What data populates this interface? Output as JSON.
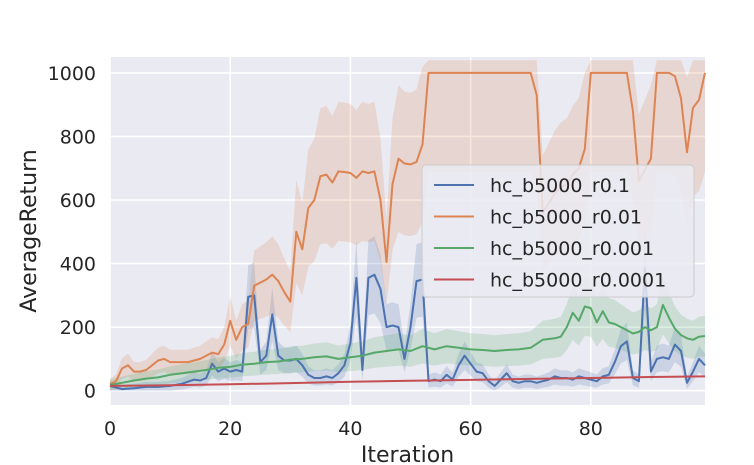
{
  "chart_data": {
    "type": "line",
    "title": "",
    "xlabel": "Iteration",
    "ylabel": "AverageReturn",
    "xlim": [
      0,
      99
    ],
    "ylim": [
      -45,
      1050
    ],
    "x_ticks": [
      0,
      20,
      40,
      60,
      80
    ],
    "y_ticks": [
      0,
      200,
      400,
      600,
      800,
      1000
    ],
    "grid": true,
    "legend_position": "center-right",
    "colors": {
      "background": "#eaeaf2",
      "grid": "#ffffff",
      "text": "#262626"
    },
    "series": [
      {
        "name": "hc_b5000_r0.1",
        "color": "#4c72b0",
        "band": true,
        "points": [
          [
            0,
            15
          ],
          [
            2,
            5
          ],
          [
            4,
            8
          ],
          [
            6,
            12
          ],
          [
            8,
            12
          ],
          [
            10,
            15
          ],
          [
            12,
            22
          ],
          [
            14,
            35
          ],
          [
            15,
            32
          ],
          [
            16,
            40
          ],
          [
            17,
            85
          ],
          [
            18,
            60
          ],
          [
            19,
            70
          ],
          [
            20,
            60
          ],
          [
            21,
            65
          ],
          [
            22,
            60
          ],
          [
            23,
            295
          ],
          [
            24,
            300
          ],
          [
            25,
            90
          ],
          [
            26,
            110
          ],
          [
            27,
            240
          ],
          [
            28,
            110
          ],
          [
            29,
            95
          ],
          [
            30,
            95
          ],
          [
            31,
            100
          ],
          [
            32,
            80
          ],
          [
            33,
            50
          ],
          [
            34,
            40
          ],
          [
            35,
            40
          ],
          [
            36,
            45
          ],
          [
            37,
            40
          ],
          [
            38,
            55
          ],
          [
            39,
            80
          ],
          [
            40,
            150
          ],
          [
            41,
            355
          ],
          [
            42,
            65
          ],
          [
            43,
            355
          ],
          [
            44,
            365
          ],
          [
            45,
            320
          ],
          [
            46,
            200
          ],
          [
            47,
            205
          ],
          [
            48,
            200
          ],
          [
            49,
            100
          ],
          [
            50,
            200
          ],
          [
            51,
            345
          ],
          [
            52,
            350
          ],
          [
            53,
            30
          ],
          [
            54,
            35
          ],
          [
            55,
            30
          ],
          [
            56,
            50
          ],
          [
            57,
            35
          ],
          [
            58,
            80
          ],
          [
            59,
            110
          ],
          [
            60,
            85
          ],
          [
            61,
            60
          ],
          [
            62,
            55
          ],
          [
            63,
            30
          ],
          [
            64,
            15
          ],
          [
            65,
            35
          ],
          [
            66,
            55
          ],
          [
            67,
            30
          ],
          [
            68,
            25
          ],
          [
            69,
            30
          ],
          [
            70,
            30
          ],
          [
            71,
            25
          ],
          [
            72,
            30
          ],
          [
            73,
            35
          ],
          [
            74,
            45
          ],
          [
            75,
            40
          ],
          [
            76,
            40
          ],
          [
            77,
            35
          ],
          [
            78,
            45
          ],
          [
            79,
            40
          ],
          [
            80,
            35
          ],
          [
            81,
            30
          ],
          [
            82,
            45
          ],
          [
            83,
            50
          ],
          [
            84,
            90
          ],
          [
            85,
            140
          ],
          [
            86,
            155
          ],
          [
            87,
            40
          ],
          [
            88,
            30
          ],
          [
            89,
            385
          ],
          [
            90,
            60
          ],
          [
            91,
            100
          ],
          [
            92,
            105
          ],
          [
            93,
            100
          ],
          [
            94,
            145
          ],
          [
            95,
            125
          ],
          [
            96,
            25
          ],
          [
            97,
            60
          ],
          [
            98,
            100
          ],
          [
            99,
            80
          ]
        ]
      },
      {
        "name": "hc_b5000_r0.01",
        "color": "#dd8452",
        "band": true,
        "points": [
          [
            0,
            20
          ],
          [
            1,
            30
          ],
          [
            2,
            70
          ],
          [
            3,
            80
          ],
          [
            4,
            60
          ],
          [
            5,
            60
          ],
          [
            6,
            65
          ],
          [
            7,
            80
          ],
          [
            8,
            95
          ],
          [
            9,
            100
          ],
          [
            10,
            90
          ],
          [
            11,
            90
          ],
          [
            12,
            90
          ],
          [
            13,
            90
          ],
          [
            14,
            95
          ],
          [
            15,
            100
          ],
          [
            16,
            110
          ],
          [
            17,
            120
          ],
          [
            18,
            115
          ],
          [
            19,
            145
          ],
          [
            20,
            220
          ],
          [
            21,
            160
          ],
          [
            22,
            200
          ],
          [
            23,
            210
          ],
          [
            24,
            330
          ],
          [
            25,
            340
          ],
          [
            26,
            350
          ],
          [
            27,
            365
          ],
          [
            28,
            345
          ],
          [
            29,
            310
          ],
          [
            30,
            280
          ],
          [
            31,
            500
          ],
          [
            32,
            445
          ],
          [
            33,
            575
          ],
          [
            34,
            600
          ],
          [
            35,
            675
          ],
          [
            36,
            680
          ],
          [
            37,
            655
          ],
          [
            38,
            690
          ],
          [
            39,
            688
          ],
          [
            40,
            685
          ],
          [
            41,
            670
          ],
          [
            42,
            690
          ],
          [
            43,
            685
          ],
          [
            44,
            690
          ],
          [
            45,
            600
          ],
          [
            46,
            405
          ],
          [
            47,
            650
          ],
          [
            48,
            730
          ],
          [
            49,
            715
          ],
          [
            50,
            712
          ],
          [
            51,
            720
          ],
          [
            52,
            775
          ],
          [
            53,
            1000
          ],
          [
            54,
            1000
          ],
          [
            55,
            1000
          ],
          [
            56,
            1000
          ],
          [
            57,
            1000
          ],
          [
            58,
            1000
          ],
          [
            59,
            1000
          ],
          [
            60,
            1000
          ],
          [
            61,
            1000
          ],
          [
            62,
            1000
          ],
          [
            63,
            1000
          ],
          [
            64,
            1000
          ],
          [
            65,
            1000
          ],
          [
            66,
            1000
          ],
          [
            67,
            1000
          ],
          [
            68,
            1000
          ],
          [
            69,
            1000
          ],
          [
            70,
            1000
          ],
          [
            71,
            930
          ],
          [
            72,
            560
          ],
          [
            73,
            590
          ],
          [
            74,
            620
          ],
          [
            75,
            640
          ],
          [
            76,
            650
          ],
          [
            77,
            680
          ],
          [
            78,
            700
          ],
          [
            79,
            760
          ],
          [
            80,
            1000
          ],
          [
            81,
            1000
          ],
          [
            82,
            1000
          ],
          [
            83,
            1000
          ],
          [
            84,
            1000
          ],
          [
            85,
            1000
          ],
          [
            86,
            1000
          ],
          [
            87,
            880
          ],
          [
            88,
            660
          ],
          [
            89,
            695
          ],
          [
            90,
            730
          ],
          [
            91,
            1000
          ],
          [
            92,
            1000
          ],
          [
            93,
            1000
          ],
          [
            94,
            990
          ],
          [
            95,
            920
          ],
          [
            96,
            750
          ],
          [
            97,
            890
          ],
          [
            98,
            915
          ],
          [
            99,
            1000
          ]
        ]
      },
      {
        "name": "hc_b5000_r0.001",
        "color": "#55a868",
        "band": true,
        "points": [
          [
            0,
            18
          ],
          [
            2,
            25
          ],
          [
            4,
            32
          ],
          [
            6,
            38
          ],
          [
            8,
            42
          ],
          [
            10,
            50
          ],
          [
            12,
            55
          ],
          [
            14,
            60
          ],
          [
            16,
            65
          ],
          [
            18,
            72
          ],
          [
            20,
            75
          ],
          [
            22,
            82
          ],
          [
            24,
            85
          ],
          [
            26,
            90
          ],
          [
            28,
            92
          ],
          [
            30,
            98
          ],
          [
            32,
            100
          ],
          [
            34,
            105
          ],
          [
            36,
            108
          ],
          [
            38,
            100
          ],
          [
            40,
            105
          ],
          [
            42,
            110
          ],
          [
            44,
            120
          ],
          [
            46,
            125
          ],
          [
            48,
            130
          ],
          [
            50,
            125
          ],
          [
            52,
            140
          ],
          [
            54,
            130
          ],
          [
            56,
            140
          ],
          [
            58,
            135
          ],
          [
            60,
            130
          ],
          [
            62,
            128
          ],
          [
            64,
            125
          ],
          [
            66,
            128
          ],
          [
            68,
            130
          ],
          [
            70,
            135
          ],
          [
            72,
            160
          ],
          [
            74,
            165
          ],
          [
            75,
            170
          ],
          [
            76,
            200
          ],
          [
            77,
            245
          ],
          [
            78,
            220
          ],
          [
            79,
            265
          ],
          [
            80,
            260
          ],
          [
            81,
            215
          ],
          [
            82,
            250
          ],
          [
            83,
            215
          ],
          [
            84,
            210
          ],
          [
            85,
            200
          ],
          [
            86,
            190
          ],
          [
            87,
            180
          ],
          [
            88,
            185
          ],
          [
            89,
            200
          ],
          [
            90,
            190
          ],
          [
            91,
            200
          ],
          [
            92,
            270
          ],
          [
            93,
            230
          ],
          [
            94,
            195
          ],
          [
            95,
            175
          ],
          [
            96,
            165
          ],
          [
            97,
            160
          ],
          [
            98,
            170
          ],
          [
            99,
            172
          ]
        ]
      },
      {
        "name": "hc_b5000_r0.0001",
        "color": "#c44e52",
        "band": false,
        "points": [
          [
            0,
            15
          ],
          [
            10,
            17
          ],
          [
            20,
            20
          ],
          [
            30,
            24
          ],
          [
            40,
            28
          ],
          [
            50,
            31
          ],
          [
            60,
            34
          ],
          [
            70,
            37
          ],
          [
            80,
            40
          ],
          [
            90,
            43
          ],
          [
            99,
            45
          ]
        ]
      }
    ]
  }
}
